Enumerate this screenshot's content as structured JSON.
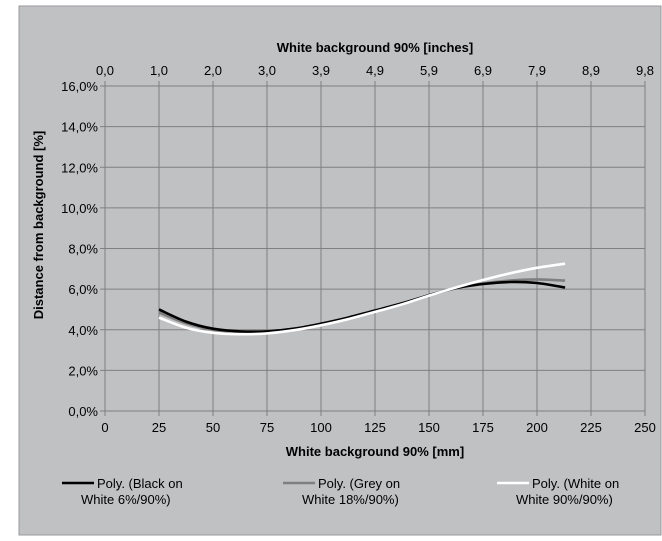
{
  "chart_data": {
    "type": "line",
    "x_bottom": {
      "label": "White background 90% [mm]",
      "range": [
        0,
        250
      ],
      "ticks": [
        0,
        25,
        50,
        75,
        100,
        125,
        150,
        175,
        200,
        225,
        250
      ],
      "tick_labels": [
        "0",
        "25",
        "50",
        "75",
        "100",
        "125",
        "150",
        "175",
        "200",
        "225",
        "250"
      ]
    },
    "x_top": {
      "label": "White background 90% [inches]",
      "tick_labels": [
        "0,0",
        "1,0",
        "2,0",
        "3,0",
        "3,9",
        "4,9",
        "5,9",
        "6,9",
        "7,9",
        "8,9",
        "9,8"
      ]
    },
    "y": {
      "label": "Distance from background [%]",
      "range": [
        0,
        16
      ],
      "ticks": [
        0,
        2,
        4,
        6,
        8,
        10,
        12,
        14,
        16
      ],
      "tick_labels": [
        "0,0%",
        "2,0%",
        "4,0%",
        "6,0%",
        "8,0%",
        "10,0%",
        "12,0%",
        "14,0%",
        "16,0%"
      ]
    },
    "grid": true,
    "legend_position": "bottom",
    "series": [
      {
        "name_line1": "Poly. (Black on",
        "name_line2": "White 6%/90%)",
        "color": "#000000",
        "x": [
          25,
          37.5,
          50,
          62.5,
          75,
          87.5,
          100,
          112.5,
          125,
          137.5,
          150,
          162.5,
          175,
          187.5,
          200,
          213
        ],
        "y": [
          5.0,
          4.4,
          4.05,
          3.92,
          3.92,
          4.05,
          4.3,
          4.6,
          4.95,
          5.3,
          5.7,
          6.05,
          6.25,
          6.35,
          6.3,
          6.08
        ]
      },
      {
        "name_line1": "Poly. (Grey on",
        "name_line2": "White 18%/90%)",
        "color": "#7f7f7f",
        "x": [
          25,
          37.5,
          50,
          62.5,
          75,
          87.5,
          100,
          112.5,
          125,
          137.5,
          150,
          162.5,
          175,
          187.5,
          200,
          213
        ],
        "y": [
          4.85,
          4.32,
          4.0,
          3.9,
          3.92,
          4.05,
          4.28,
          4.58,
          4.93,
          5.3,
          5.7,
          6.05,
          6.28,
          6.42,
          6.48,
          6.42
        ]
      },
      {
        "name_line1": "Poly. (White on",
        "name_line2": "White 90%/90%)",
        "color": "#ffffff",
        "x": [
          25,
          37.5,
          50,
          62.5,
          75,
          87.5,
          100,
          112.5,
          125,
          137.5,
          150,
          162.5,
          175,
          187.5,
          200,
          213
        ],
        "y": [
          4.6,
          4.1,
          3.85,
          3.78,
          3.82,
          3.98,
          4.22,
          4.52,
          4.88,
          5.25,
          5.68,
          6.08,
          6.45,
          6.78,
          7.05,
          7.25
        ]
      }
    ]
  }
}
